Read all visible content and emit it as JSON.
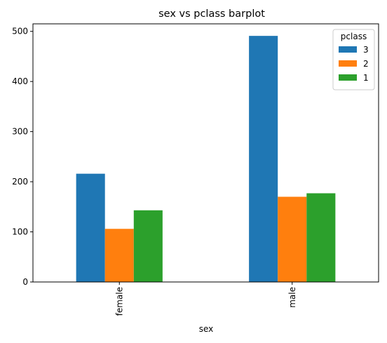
{
  "chart_data": {
    "type": "bar",
    "title": "sex vs pclass barplot",
    "xlabel": "sex",
    "ylabel": "",
    "categories": [
      "female",
      "male"
    ],
    "series": [
      {
        "name": "3",
        "values": [
          216,
          491
        ],
        "color": "#1f77b4"
      },
      {
        "name": "2",
        "values": [
          106,
          170
        ],
        "color": "#ff7f0e"
      },
      {
        "name": "1",
        "values": [
          143,
          177
        ],
        "color": "#2ca02c"
      }
    ],
    "ylim": [
      0,
      515
    ],
    "yticks": [
      0,
      100,
      200,
      300,
      400,
      500
    ],
    "tick_label_rotation": 90,
    "grid": false,
    "legend": {
      "title": "pclass",
      "position": "top-right"
    }
  }
}
